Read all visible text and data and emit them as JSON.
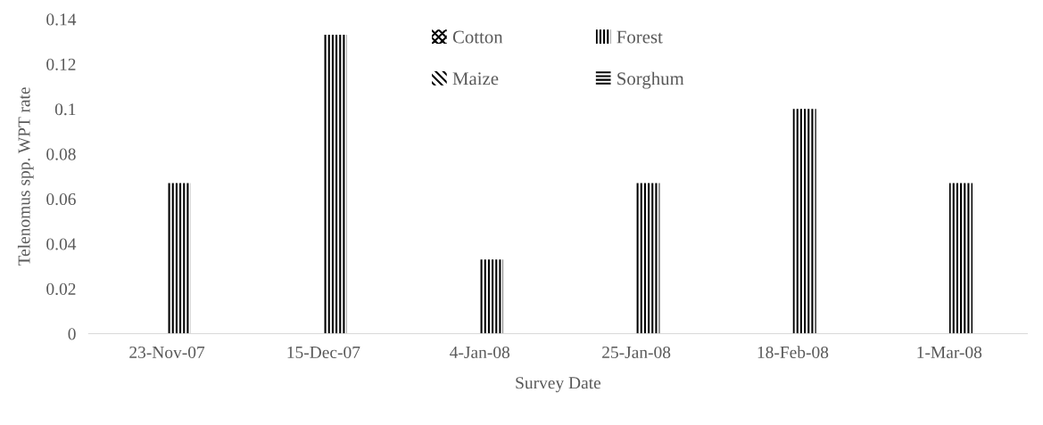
{
  "chart_data": {
    "type": "bar",
    "xlabel": "Survey Date",
    "ylabel": "Telenomus spp. WPT rate",
    "categories": [
      "23-Nov-07",
      "15-Dec-07",
      "4-Jan-08",
      "25-Jan-08",
      "18-Feb-08",
      "1-Mar-08"
    ],
    "series": [
      {
        "name": "Cotton",
        "color": "#000000",
        "values": [
          0,
          0,
          0,
          0,
          0,
          0
        ]
      },
      {
        "name": "Maize",
        "color": "#000000",
        "values": [
          0,
          0,
          0,
          0,
          0,
          0
        ]
      },
      {
        "name": "Forest",
        "color": "#000000",
        "values": [
          0.067,
          0.133,
          0.033,
          0.067,
          0.1,
          0.067
        ]
      },
      {
        "name": "Sorghum",
        "color": "#000000",
        "values": [
          0,
          0,
          0,
          0,
          0,
          0
        ]
      }
    ],
    "ylim": [
      0,
      0.14
    ],
    "yticks": [
      0,
      0.02,
      0.04,
      0.06,
      0.08,
      {
        "value": 0.1,
        "label": "0.1"
      },
      0.12,
      0.14
    ],
    "grid": false,
    "legend": "top"
  }
}
